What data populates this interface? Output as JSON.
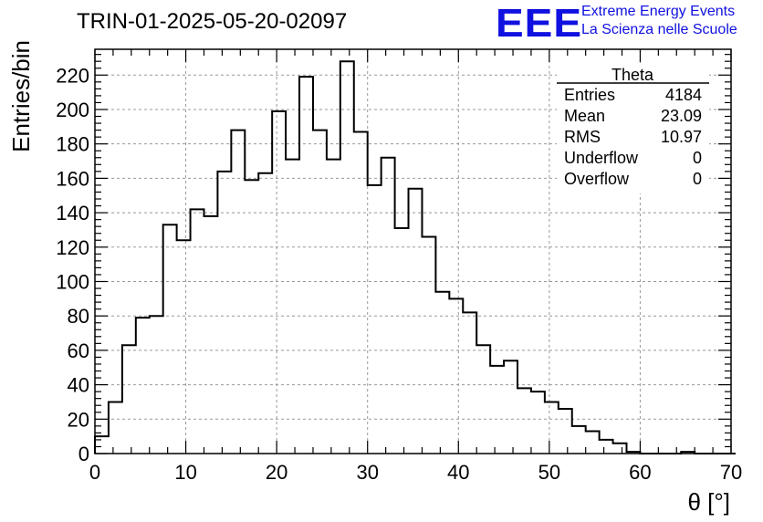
{
  "header": {
    "run_title": "TRIN-01-2025-05-20-02097",
    "logo_text": "EEE",
    "logo_line1": "Extreme Energy Events",
    "logo_line2": "La Scienza nelle Scuole"
  },
  "stats_box": {
    "title": "Theta",
    "rows": [
      {
        "label": "Entries",
        "value": "4184"
      },
      {
        "label": "Mean",
        "value": "23.09"
      },
      {
        "label": "RMS",
        "value": "10.97"
      },
      {
        "label": "Underflow",
        "value": "0"
      },
      {
        "label": "Overflow",
        "value": "0"
      }
    ]
  },
  "colors": {
    "logo": "#1010e0",
    "line": "#000000",
    "grid": "#999999"
  },
  "chart_data": {
    "type": "histogram",
    "xlabel": "θ [°]",
    "ylabel": "Entries/bin",
    "xlim": [
      0,
      70
    ],
    "ylim": [
      0,
      235
    ],
    "grid": true,
    "x_ticks": [
      0,
      10,
      20,
      30,
      40,
      50,
      60,
      70
    ],
    "y_ticks": [
      0,
      20,
      40,
      60,
      80,
      100,
      120,
      140,
      160,
      180,
      200,
      220
    ],
    "bin_width": 1.5,
    "bin_edges_start": 0,
    "values": [
      10,
      30,
      63,
      79,
      80,
      133,
      124,
      142,
      138,
      164,
      188,
      159,
      163,
      199,
      171,
      219,
      188,
      171,
      228,
      187,
      156,
      172,
      131,
      154,
      126,
      94,
      90,
      82,
      63,
      51,
      54,
      38,
      36,
      30,
      26,
      16,
      13,
      8,
      6,
      1,
      0,
      0,
      0,
      1,
      0,
      0,
      0
    ]
  }
}
